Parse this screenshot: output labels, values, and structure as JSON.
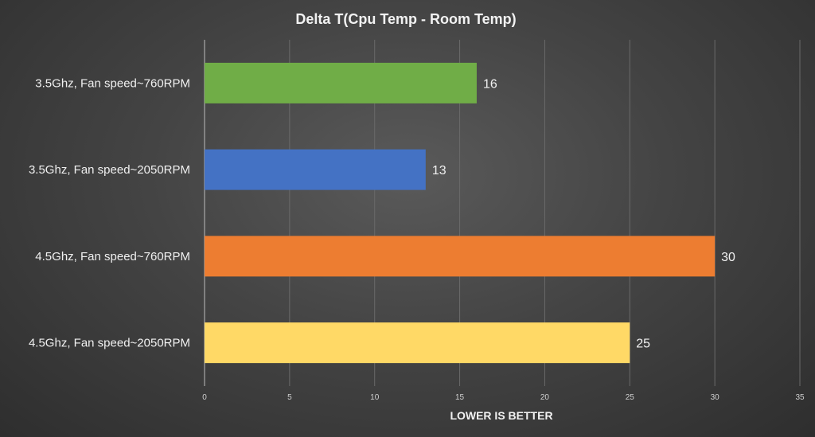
{
  "chart_data": {
    "type": "bar",
    "orientation": "horizontal",
    "title": "Delta T(Cpu Temp - Room Temp)",
    "xlabel": "LOWER IS BETTER",
    "ylabel": "",
    "categories": [
      "3.5Ghz, Fan speed~760RPM",
      "3.5Ghz, Fan speed~2050RPM",
      "4.5Ghz, Fan speed~760RPM",
      "4.5Ghz, Fan speed~2050RPM"
    ],
    "values": [
      16,
      13,
      30,
      25
    ],
    "bar_colors": [
      "#70ad47",
      "#4472c4",
      "#ed7d31",
      "#ffd966"
    ],
    "xlim": [
      0,
      35
    ],
    "xticks": [
      0,
      5,
      10,
      15,
      20,
      25,
      30,
      35
    ],
    "grid": true,
    "legend": "none"
  }
}
